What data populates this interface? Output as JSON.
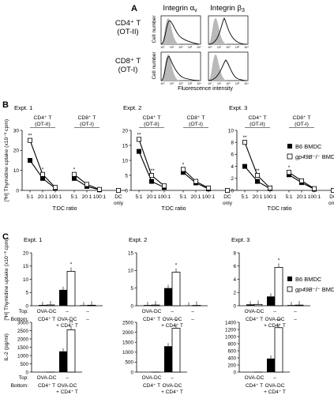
{
  "panels": {
    "A": "A",
    "B": "B",
    "C": "C"
  },
  "panel_a": {
    "col_titles": [
      "Integrin α",
      "Integrin β"
    ],
    "col_subscripts": [
      "v",
      "3"
    ],
    "rows": [
      {
        "line1": "CD4⁺ T",
        "line2": "(OT-II)"
      },
      {
        "line1": "CD8⁺ T",
        "line2": "(OT-I)"
      }
    ],
    "ylabel": "Cell number",
    "xlabel": "Fluorescence intensity",
    "tick_labels": [
      "10⁰",
      "10¹",
      "10²",
      "10³",
      "10⁴"
    ]
  },
  "legend": {
    "b6": "B6 BMDC",
    "ko_italic": "gp49B",
    "ko_rest": "⁻/⁻ BMDC"
  },
  "chart_data": [
    {
      "type": "line",
      "panel": "B",
      "title": "Expt. 1",
      "ylabel": "[³H] Thymidine uptake (x10⁻³ cpm)",
      "xlabel": "T:DC ratio",
      "ylim": [
        0,
        30
      ],
      "yticks": [
        0,
        10,
        20,
        30
      ],
      "groups": [
        {
          "line1": "CD4⁺ T",
          "line2": "(OT-II)"
        },
        {
          "line1": "CD8⁺ T",
          "line2": "(OT-I)"
        }
      ],
      "categories": [
        "5:1",
        "20:1",
        "100:1",
        "5:1",
        "20:1",
        "100:1",
        "DC only"
      ],
      "series": [
        {
          "name": "B6 BMDC",
          "values": [
            15,
            6,
            1,
            6,
            2,
            0.3,
            0
          ]
        },
        {
          "name": "gp49B⁻/⁻ BMDC",
          "values": [
            25,
            8,
            1.5,
            8,
            3,
            0.5,
            0
          ]
        }
      ],
      "stars": [
        "**",
        "*",
        "*"
      ]
    },
    {
      "type": "line",
      "panel": "B",
      "title": "Expt. 2",
      "ylim": [
        0,
        20
      ],
      "yticks": [
        0,
        5,
        10,
        15,
        20
      ],
      "groups": [
        {
          "line1": "CD4⁺ T",
          "line2": "(OT-II)"
        },
        {
          "line1": "CD8⁺ T",
          "line2": "(OT-I)"
        }
      ],
      "categories": [
        "5:1",
        "20:1",
        "100:1",
        "5:1",
        "20:1",
        "100:1",
        "DC only"
      ],
      "series": [
        {
          "name": "B6 BMDC",
          "values": [
            13,
            3,
            1,
            6,
            2.5,
            0.5,
            0
          ]
        },
        {
          "name": "gp49B⁻/⁻ BMDC",
          "values": [
            17,
            5,
            1.5,
            7,
            3,
            0.8,
            0
          ]
        }
      ],
      "stars": [
        "**",
        "***",
        "*"
      ]
    },
    {
      "type": "line",
      "panel": "B",
      "title": "Expt. 3",
      "ylim": [
        0,
        10
      ],
      "yticks": [
        0,
        2,
        4,
        6,
        8,
        10
      ],
      "groups": [
        {
          "line1": "CD4⁺ T",
          "line2": "(OT-II)"
        },
        {
          "line1": "CD8⁺ T",
          "line2": "(OT-I)"
        }
      ],
      "categories": [
        "5:1",
        "20:1",
        "100:1",
        "5:1",
        "20:1",
        "100:1",
        "DC only"
      ],
      "series": [
        {
          "name": "B6 BMDC",
          "values": [
            4,
            1.5,
            0.3,
            2.6,
            1.3,
            0.2,
            0
          ]
        },
        {
          "name": "gp49B⁻/⁻ BMDC",
          "values": [
            8,
            2.5,
            0.4,
            3,
            1.6,
            0.3,
            0
          ]
        }
      ],
      "stars": [
        "**",
        "**",
        "*"
      ]
    },
    {
      "type": "bar",
      "panel": "C",
      "title": "Expt. 1",
      "ylabel": "[³H] Thymidine uptake (x10⁻³ cpm)",
      "ylim": [
        0,
        20
      ],
      "yticks": [
        0,
        5,
        10,
        15,
        20
      ],
      "top_label": "Top:",
      "bottom_label": "Bottom:",
      "top": [
        "OVA-DC",
        "–",
        "–"
      ],
      "bottom": [
        [
          "CD4⁺ T"
        ],
        [
          "OVA-DC",
          "+ CD4⁺ T"
        ],
        [
          "–"
        ]
      ],
      "series": [
        {
          "name": "B6 BMDC",
          "values": [
            0.3,
            6,
            0.2
          ]
        },
        {
          "name": "gp49B⁻/⁻ BMDC",
          "values": [
            0.3,
            13,
            0.2
          ]
        }
      ],
      "stars": [
        "",
        "*",
        ""
      ]
    },
    {
      "type": "bar",
      "panel": "C",
      "title": "Expt. 2",
      "ylim": [
        0,
        15
      ],
      "yticks": [
        0,
        5,
        10,
        15
      ],
      "top": [
        "OVA-DC",
        "–",
        "–"
      ],
      "bottom": [
        [
          "CD4⁺ T"
        ],
        [
          "OVA-DC",
          "+ CD4⁺ T"
        ],
        [
          "–"
        ]
      ],
      "series": [
        {
          "name": "B6 BMDC",
          "values": [
            0.2,
            5,
            0.1
          ]
        },
        {
          "name": "gp49B⁻/⁻ BMDC",
          "values": [
            0.2,
            9.5,
            0.1
          ]
        }
      ],
      "stars": [
        "",
        "*",
        ""
      ]
    },
    {
      "type": "bar",
      "panel": "C",
      "title": "Expt. 3",
      "ylim": [
        0,
        8
      ],
      "yticks": [
        0,
        2,
        4,
        6,
        8
      ],
      "top": [
        "OVA-DC",
        "–",
        "–"
      ],
      "bottom": [
        [
          "CD4⁺ T"
        ],
        [
          "OVA-DC",
          "+ CD4⁺ T"
        ],
        [
          "–"
        ]
      ],
      "series": [
        {
          "name": "B6 BMDC",
          "values": [
            0.2,
            1.4,
            0.1
          ]
        },
        {
          "name": "gp49B⁻/⁻ BMDC",
          "values": [
            0.2,
            5.8,
            0.1
          ]
        }
      ],
      "stars": [
        "",
        "*",
        ""
      ]
    },
    {
      "type": "bar",
      "panel": "C",
      "title": "",
      "ylabel": "IL-2 (pg/ml)",
      "ylim": [
        0,
        3000
      ],
      "yticks": [
        0,
        500,
        1000,
        1500,
        2000,
        2500,
        3000
      ],
      "top_label": "Top:",
      "bottom_label": "Bottom:",
      "top": [
        "OVA-DC",
        "–"
      ],
      "bottom": [
        [
          "CD4⁺ T"
        ],
        [
          "OVA-DC",
          "+ CD4⁺ T"
        ]
      ],
      "series": [
        {
          "name": "B6 BMDC",
          "values": [
            0,
            1250
          ]
        },
        {
          "name": "gp49B⁻/⁻ BMDC",
          "values": [
            0,
            2550
          ]
        }
      ],
      "stars": [
        "",
        "**"
      ]
    },
    {
      "type": "bar",
      "panel": "C",
      "title": "",
      "ylim": [
        0,
        2500
      ],
      "yticks": [
        0,
        500,
        1000,
        1500,
        2000,
        2500
      ],
      "top": [
        "OVA-DC",
        "–"
      ],
      "bottom": [
        [
          "CD4⁺ T"
        ],
        [
          "OVA-DC",
          "+ CD4⁺ T"
        ]
      ],
      "series": [
        {
          "name": "B6 BMDC",
          "values": [
            0,
            1300
          ]
        },
        {
          "name": "gp49B⁻/⁻ BMDC",
          "values": [
            0,
            2200
          ]
        }
      ],
      "stars": [
        "",
        "*"
      ]
    },
    {
      "type": "bar",
      "panel": "C",
      "title": "",
      "ylim": [
        0,
        1400
      ],
      "yticks": [
        0,
        200,
        400,
        600,
        800,
        1000,
        1200,
        1400
      ],
      "top": [
        "OVA-DC",
        "–"
      ],
      "bottom": [
        [
          "CD4⁺ T"
        ],
        [
          "OVA-DC",
          "+ CD4⁺ T"
        ]
      ],
      "series": [
        {
          "name": "B6 BMDC",
          "values": [
            0,
            380
          ]
        },
        {
          "name": "gp49B⁻/⁻ BMDC",
          "values": [
            0,
            1250
          ]
        }
      ],
      "stars": [
        "",
        "**"
      ]
    }
  ]
}
